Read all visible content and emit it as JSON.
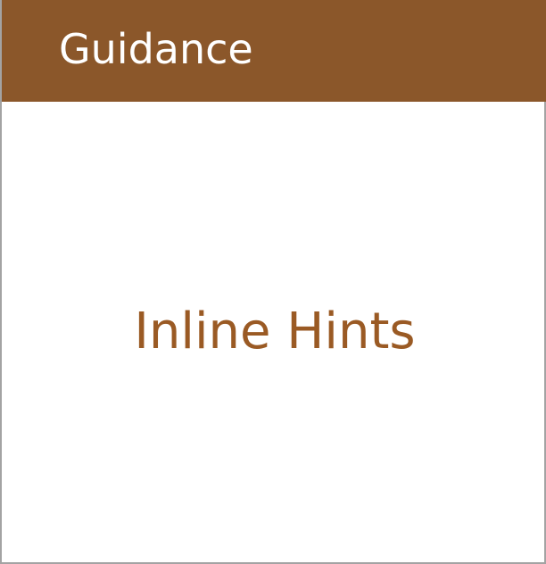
{
  "card": {
    "title": "Guidance",
    "label": "Inline Hints"
  },
  "colors": {
    "header_background": "#8b572a",
    "header_text": "#ffffff",
    "label_text": "#9a5a24",
    "card_background": "#ffffff",
    "card_border": "#a3a3a3"
  }
}
